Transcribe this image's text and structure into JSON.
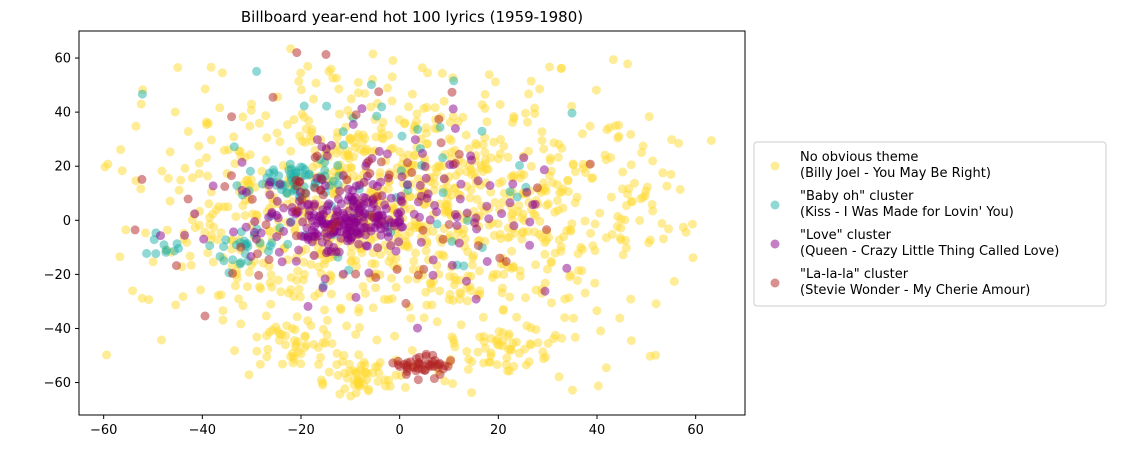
{
  "chart_data": {
    "type": "scatter",
    "title": "Billboard year-end hot 100 lyrics (1959-1980)",
    "xlabel": "",
    "ylabel": "",
    "xlim": [
      -65,
      70
    ],
    "ylim": [
      -72,
      70
    ],
    "x_ticks": [
      -60,
      -40,
      -20,
      0,
      20,
      40,
      60
    ],
    "y_ticks": [
      -60,
      -40,
      -20,
      0,
      20,
      40,
      60
    ],
    "grid": false,
    "legend_position": "right",
    "series": [
      {
        "key": "no_theme",
        "name": "No obvious theme",
        "sublabel": "(Billy Joel - You May Be Right)",
        "color": "#ffd92f",
        "count": 1180,
        "clusters": [
          {
            "cx": 2,
            "cy": 5,
            "sx": 28,
            "sy": 24,
            "w": 0.86
          },
          {
            "cx": -22,
            "cy": -45,
            "sx": 5,
            "sy": 5,
            "w": 0.05
          },
          {
            "cx": 20,
            "cy": -48,
            "sx": 6,
            "sy": 5,
            "w": 0.05
          },
          {
            "cx": -7,
            "cy": -58,
            "sx": 4,
            "sy": 4,
            "w": 0.04
          }
        ]
      },
      {
        "key": "baby_oh",
        "name": "\"Baby oh\" cluster",
        "sublabel": "(Kiss - I Was Made for Lovin' You)",
        "color": "#20b2aa",
        "count": 150,
        "clusters": [
          {
            "cx": -20,
            "cy": 15,
            "sx": 4,
            "sy": 3.5,
            "w": 0.35
          },
          {
            "cx": -32,
            "cy": -10,
            "sx": 3.5,
            "sy": 3.5,
            "w": 0.2
          },
          {
            "cx": -47,
            "cy": -11,
            "sx": 2.5,
            "sy": 2.5,
            "w": 0.1
          },
          {
            "cx": -10,
            "cy": 15,
            "sx": 20,
            "sy": 22,
            "w": 0.35
          }
        ]
      },
      {
        "key": "love",
        "name": "\"Love\" cluster",
        "sublabel": "(Queen - Crazy Little Thing Called Love)",
        "color": "#8b008b",
        "count": 320,
        "clusters": [
          {
            "cx": -10,
            "cy": 0,
            "sx": 6,
            "sy": 5,
            "w": 0.55
          },
          {
            "cx": -5,
            "cy": 5,
            "sx": 16,
            "sy": 14,
            "w": 0.45
          }
        ]
      },
      {
        "key": "la_la",
        "name": "\"La-la-la\" cluster",
        "sublabel": "(Stevie Wonder - My Cherie Amour)",
        "color": "#b22222",
        "count": 110,
        "clusters": [
          {
            "cx": 4,
            "cy": -54,
            "sx": 3,
            "sy": 2,
            "w": 0.5
          },
          {
            "cx": -5,
            "cy": 5,
            "sx": 24,
            "sy": 24,
            "w": 0.5
          }
        ]
      }
    ]
  }
}
